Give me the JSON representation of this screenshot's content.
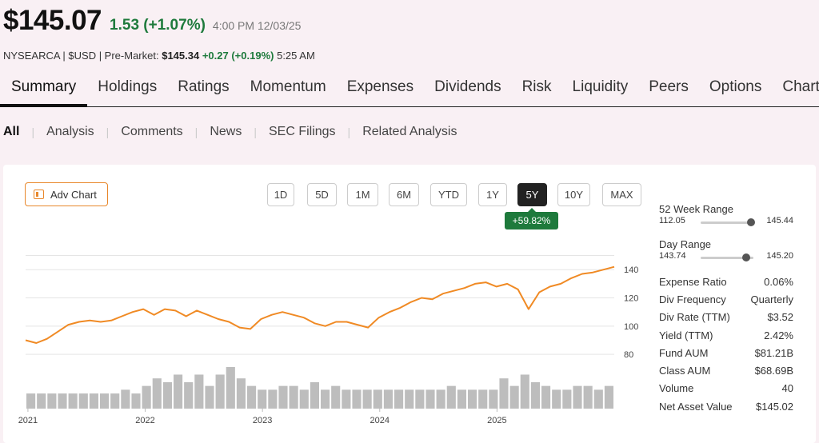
{
  "quote": {
    "price": "$145.07",
    "change": "1.53 (+1.07%)",
    "timestamp": "4:00 PM 12/03/25",
    "exchange": "NYSEARCA | $USD | Pre-Market:",
    "premarket_price": "$145.34",
    "premarket_change": "+0.27 (+0.19%)",
    "premarket_time": "5:25 AM"
  },
  "tabs": [
    "Summary",
    "Holdings",
    "Ratings",
    "Momentum",
    "Expenses",
    "Dividends",
    "Risk",
    "Liquidity",
    "Peers",
    "Options",
    "Charting"
  ],
  "subnav": [
    "All",
    "Analysis",
    "Comments",
    "News",
    "SEC Filings",
    "Related Analysis"
  ],
  "chart_controls": {
    "adv_chart_label": "Adv Chart",
    "ranges": [
      "1D",
      "5D",
      "1M",
      "6M",
      "YTD",
      "1Y",
      "5Y",
      "10Y",
      "MAX"
    ],
    "active_range": "5Y",
    "performance": "+59.82%"
  },
  "colors": {
    "price_line": "#f08a24",
    "volume": "#bdbdbd",
    "positive": "#1e7a3c",
    "accent": "#e8872b"
  },
  "chart_data": {
    "type": "line",
    "x_ticks": [
      "2021",
      "2022",
      "2023",
      "2024",
      "2025"
    ],
    "y_ticks": [
      80,
      100,
      120,
      140
    ],
    "ylim": [
      75,
      152
    ],
    "grid": true,
    "series": [
      {
        "values": [
          90,
          88,
          91,
          96,
          101,
          103,
          104,
          103,
          104,
          107,
          110,
          112,
          108,
          112,
          111,
          107,
          111,
          108,
          105,
          103,
          99,
          98,
          105,
          108,
          110,
          108,
          106,
          102,
          100,
          103,
          103,
          101,
          99,
          106,
          110,
          113,
          117,
          120,
          119,
          123,
          125,
          127,
          130,
          131,
          128,
          130,
          126,
          112,
          124,
          128,
          130,
          134,
          137,
          138,
          140,
          142
        ]
      }
    ],
    "volume": [
      4,
      4,
      4,
      4,
      4,
      4,
      4,
      4,
      4,
      5,
      4,
      6,
      8,
      7,
      9,
      7,
      9,
      6,
      9,
      11,
      8,
      6,
      5,
      5,
      6,
      6,
      5,
      7,
      5,
      6,
      5,
      5,
      5,
      5,
      5,
      5,
      5,
      5,
      5,
      5,
      6,
      5,
      5,
      5,
      5,
      8,
      6,
      9,
      7,
      6,
      5,
      5,
      6,
      6,
      5,
      6
    ]
  },
  "side_panel": {
    "week52": {
      "label": "52 Week Range",
      "low": "112.05",
      "high": "145.44",
      "position": 0.96
    },
    "day": {
      "label": "Day Range",
      "low": "143.74",
      "high": "145.20",
      "position": 0.86
    },
    "stats": [
      {
        "label": "Expense Ratio",
        "value": "0.06%"
      },
      {
        "label": "Div Frequency",
        "value": "Quarterly"
      },
      {
        "label": "Div Rate (TTM)",
        "value": "$3.52"
      },
      {
        "label": "Yield (TTM)",
        "value": "2.42%"
      },
      {
        "label": "Fund AUM",
        "value": "$81.21B"
      },
      {
        "label": "Class AUM",
        "value": "$68.69B"
      },
      {
        "label": "Volume",
        "value": "40"
      },
      {
        "label": "Net Asset Value",
        "value": "$145.02"
      }
    ]
  }
}
